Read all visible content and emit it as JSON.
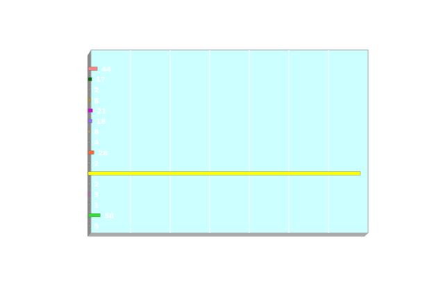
{
  "chart_data": {
    "type": "bar",
    "orientation": "horizontal",
    "grid": true,
    "background_color": "#ccffff",
    "xlim": [
      0,
      1320
    ],
    "bars": [
      {
        "value": 44,
        "label": "44",
        "color": "#ff7f7f"
      },
      {
        "value": 17,
        "label": "17",
        "color": "#006600"
      },
      {
        "value": 2,
        "label": "2",
        "color": "#999999"
      },
      {
        "value": 8,
        "label": "8",
        "color": "#cc9900"
      },
      {
        "value": 21,
        "label": "21",
        "color": "#dd00dd"
      },
      {
        "value": 18,
        "label": "18",
        "color": "#9966ff"
      },
      {
        "value": 8,
        "label": "8",
        "color": "#cc9966"
      },
      {
        "value": 4,
        "label": "4",
        "color": "#999999"
      },
      {
        "value": 28,
        "label": "28",
        "color": "#ff6633"
      },
      {
        "value": 2,
        "label": "2",
        "color": "#999999"
      },
      {
        "value": 1320,
        "label": "",
        "color": "#ffff00"
      },
      {
        "value": 2,
        "label": "2",
        "color": "#999999"
      },
      {
        "value": 3,
        "label": "3",
        "color": "#cc66cc"
      },
      {
        "value": 1,
        "label": "1",
        "color": "#999999"
      },
      {
        "value": 58,
        "label": "58",
        "color": "#33dd33"
      },
      {
        "value": 5,
        "label": "5",
        "color": "#999999"
      }
    ]
  }
}
